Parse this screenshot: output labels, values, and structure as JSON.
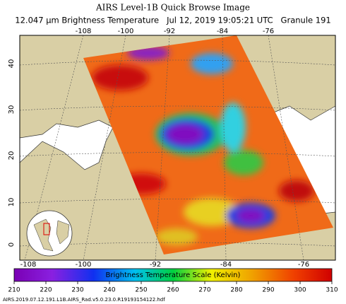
{
  "header": {
    "title": "AIRS Level-1B Quick Browse Image",
    "subtitle": "12.047 μm Brightness Temperature   Jul 12, 2019 19:05:21 UTC   Granule 191"
  },
  "map": {
    "top_longitudes": [
      "-108",
      "-100",
      "-92",
      "-84",
      "-76"
    ],
    "bottom_longitudes": [
      "-108",
      "-100",
      "-92",
      "-84",
      "-76"
    ],
    "latitudes": [
      "40",
      "30",
      "20",
      "10",
      "0"
    ]
  },
  "colorbar": {
    "label": "Brightness Temperature Scale (Kelvin)",
    "ticks": [
      210,
      220,
      230,
      240,
      250,
      260,
      270,
      280,
      290,
      300,
      310
    ]
  },
  "footer": {
    "filename": "AIRS.2019.07.12.191.L1B.AIRS_Rad.v5.0.23.0.R19193154122.hdf"
  }
}
